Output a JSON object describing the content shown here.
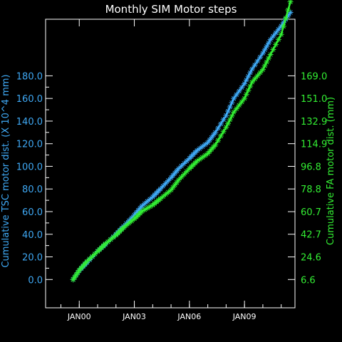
{
  "chart_data": {
    "type": "line",
    "title": "Monthly SIM Motor steps",
    "xlabel": "",
    "ylabel_left": "Cumulative TSC motor dist. (X 10^4 mm)",
    "ylabel_right": "Cumulative FA motor dist. (mm)",
    "x_range": [
      "1998-03",
      "2011-10"
    ],
    "x_ticks": [
      "JAN00",
      "JAN03",
      "JAN06",
      "JAN09"
    ],
    "x_tick_dates": [
      "2000-01",
      "2003-01",
      "2006-01",
      "2009-01"
    ],
    "y_left_range": [
      -25,
      230
    ],
    "y_left_ticks": [
      "0.0",
      "20.0",
      "40.0",
      "60.0",
      "80.0",
      "100.0",
      "120.0",
      "140.0",
      "160.0",
      "180.0"
    ],
    "y_right_ticks": [
      "6.6",
      "24.6",
      "42.7",
      "60.7",
      "78.8",
      "96.8",
      "114.9",
      "132.9",
      "151.0",
      "169.0"
    ],
    "marker": "asterisk",
    "series": [
      {
        "axis": "left",
        "color": "#3fa9f5",
        "x": [
          "1999-09",
          "2000-01",
          "2000-06",
          "2001-01",
          "2001-06",
          "2002-01",
          "2002-06",
          "2003-01",
          "2003-06",
          "2004-01",
          "2004-06",
          "2005-01",
          "2005-06",
          "2006-01",
          "2006-06",
          "2007-01",
          "2007-06",
          "2008-01",
          "2008-06",
          "2009-01",
          "2009-06",
          "2010-01",
          "2010-06",
          "2011-01",
          "2011-07"
        ],
        "values": [
          0,
          8,
          15,
          25,
          31,
          40,
          47,
          57,
          65,
          73,
          80,
          90,
          98,
          107,
          114,
          121,
          130,
          145,
          160,
          173,
          186,
          200,
          212,
          224,
          236
        ]
      },
      {
        "axis": "right",
        "color": "#33ee33",
        "x": [
          "1999-09",
          "2000-01",
          "2000-06",
          "2001-01",
          "2001-06",
          "2002-01",
          "2002-06",
          "2003-01",
          "2003-06",
          "2004-01",
          "2004-06",
          "2005-01",
          "2005-06",
          "2006-01",
          "2006-06",
          "2007-01",
          "2007-06",
          "2008-01",
          "2008-06",
          "2009-01",
          "2009-06",
          "2010-01",
          "2010-06",
          "2011-01",
          "2011-07"
        ],
        "values": [
          6.6,
          14,
          21,
          29,
          35,
          42,
          48,
          55,
          61,
          66,
          71,
          78,
          86,
          95,
          101,
          107,
          114,
          128,
          140,
          151,
          164,
          174,
          186,
          202,
          228
        ]
      }
    ]
  }
}
